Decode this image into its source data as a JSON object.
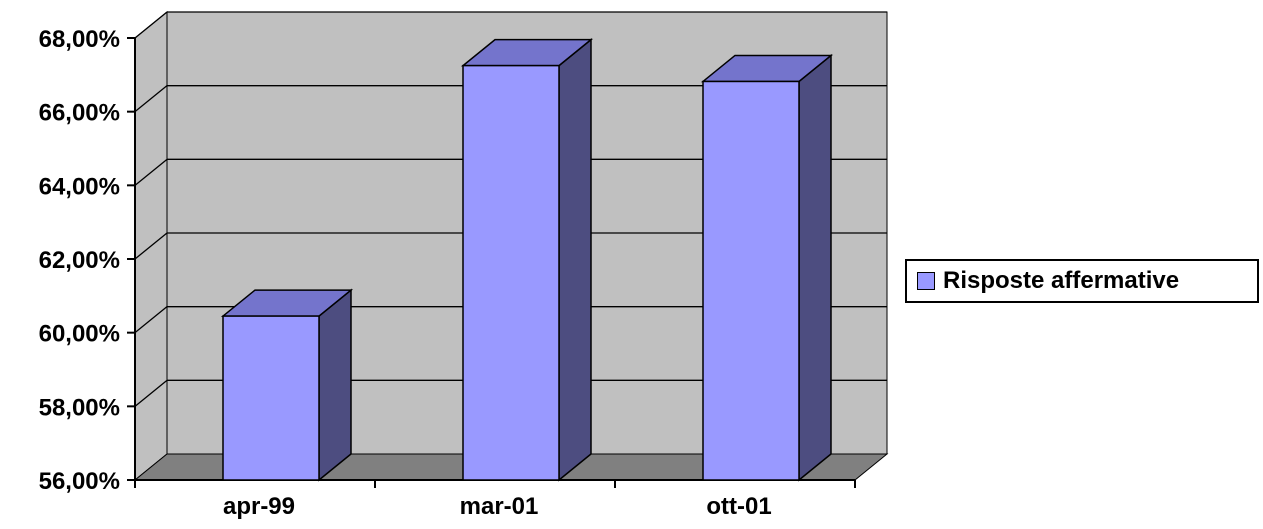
{
  "chart_data": {
    "type": "bar",
    "categories": [
      "apr-99",
      "mar-01",
      "ott-01"
    ],
    "series": [
      {
        "name": "Risposte affermative",
        "values": [
          0.6045,
          0.6725,
          0.6682
        ]
      }
    ],
    "ylim": [
      0.56,
      0.68
    ],
    "yticks": [
      "56,00%",
      "58,00%",
      "60,00%",
      "62,00%",
      "64,00%",
      "66,00%",
      "68,00%"
    ],
    "ytick_values": [
      0.56,
      0.58,
      0.6,
      0.62,
      0.64,
      0.66,
      0.68
    ],
    "grid": true,
    "legend_position": "right",
    "three_d": true,
    "colors": {
      "bar_front": "#9999ff",
      "bar_top": "#7474cc",
      "bar_side": "#4d4d80",
      "wall": "#c0c0c0",
      "floor": "#808080",
      "grid": "#000000"
    }
  },
  "legend": {
    "label": "Risposte affermative"
  }
}
